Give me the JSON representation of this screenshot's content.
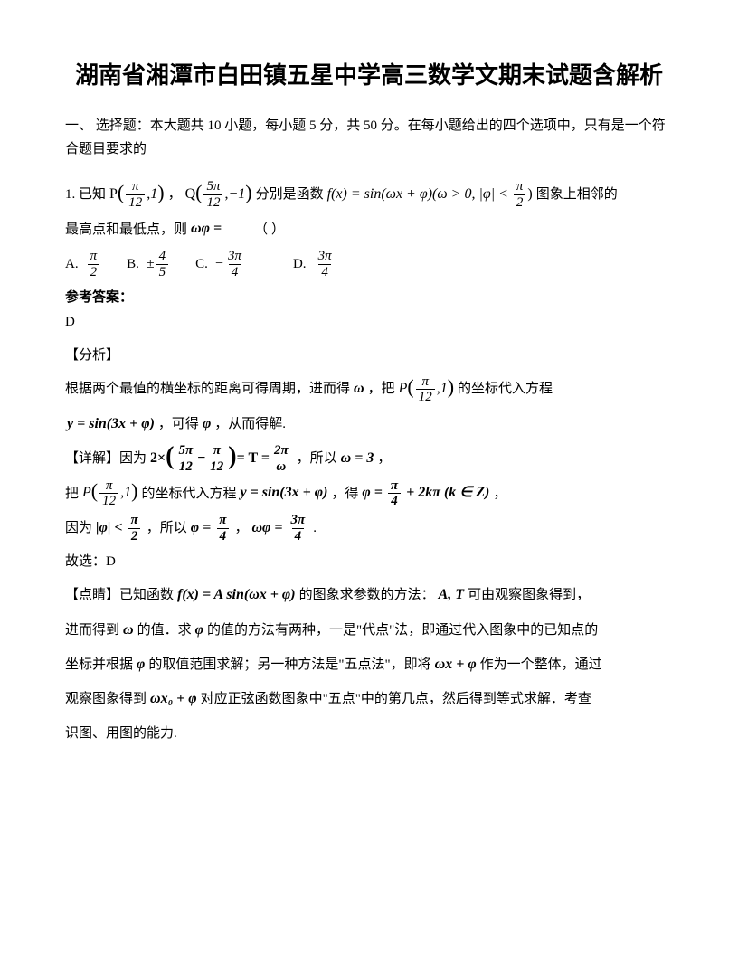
{
  "title": "湖南省湘潭市白田镇五星中学高三数学文期末试题含解析",
  "section_intro": "一、 选择题：本大题共 10 小题，每小题 5 分，共 50 分。在每小题给出的四个选项中，只有是一个符合题目要求的",
  "q1": {
    "label": "1. 已知",
    "txt_between": "，",
    "txt_after_q": "分别是函数",
    "txt_after_f": "图象上相邻的",
    "line2a": "最高点和最低点，则",
    "line2b": "（     ）",
    "P_expr": {
      "name": "P",
      "num": "π",
      "den": "12",
      "y": "1"
    },
    "Q_expr": {
      "name": "Q",
      "num": "5π",
      "den": "12",
      "y": "−1"
    },
    "f_expr": "f(x) = sin(ωx + φ)(ω > 0, |φ| < ",
    "f_frac": {
      "num": "π",
      "den": "2"
    },
    "f_close": ")",
    "wphi_eq": "ωφ =",
    "options": {
      "A": {
        "num": "π",
        "den": "2",
        "sign": ""
      },
      "B": {
        "num": "4",
        "den": "5",
        "sign": "±"
      },
      "C": {
        "num": "3π",
        "den": "4",
        "sign": "−"
      },
      "D": {
        "num": "3π",
        "den": "4",
        "sign": ""
      }
    }
  },
  "ans_label": "参考答案：",
  "ans_letter": "D",
  "analysis_label": "【分析】",
  "ana": {
    "l1a": "根据两个最值的横坐标的距离可得周期，进而得",
    "omega": "ω",
    "l1b": "，把",
    "P": {
      "num": "π",
      "den": "12",
      "y": "1"
    },
    "l1c": "的坐标代入方程",
    "l2eq": "y = sin(3x + φ)",
    "l2a": "，可得",
    "phi": "φ",
    "l2b": "，从而得解."
  },
  "detail_label": "【详解】因为",
  "det": {
    "expr1_pre": "2×",
    "expr1_a": {
      "num": "5π",
      "den": "12"
    },
    "expr1_minus": "−",
    "expr1_b": {
      "num": "π",
      "den": "12"
    },
    "expr1_eqT": "= T =",
    "expr1_T": {
      "num": "2π",
      "den": "ω"
    },
    "txt1": "，所以",
    "omega3": "ω = 3",
    "comma1": "，",
    "l3a": "把",
    "P": {
      "num": "π",
      "den": "12",
      "y": "1"
    },
    "l3b": "的坐标代入方程",
    "eq3": "y = sin(3x + φ)",
    "l3c": "，得",
    "phi_sol_a": "φ = ",
    "phi_sol_frac": {
      "num": "π",
      "den": "4"
    },
    "phi_sol_b": " + 2kπ (k ∈ Z)",
    "comma2": "，",
    "l4a": "因为",
    "abs_phi": "|φ| < ",
    "abs_phi_frac": {
      "num": "π",
      "den": "2"
    },
    "l4b": "，所以",
    "phi_val": "φ = ",
    "phi_val_frac": {
      "num": "π",
      "den": "4"
    },
    "l4c": "，",
    "wphi": "ωφ = ",
    "wphi_frac": {
      "num": "3π",
      "den": "4"
    },
    "period": ".",
    "pick": "故选：D"
  },
  "tip_label": "【点睛】已知函数",
  "tip": {
    "fx": "f(x) = A sin(ωx + φ)",
    "t1": "的图象求参数的方法：",
    "AT": "A, T",
    "t2": "可由观察图象得到，",
    "t3": "进而得到",
    "omega": "ω",
    "t4": "的值．求",
    "phi": "φ",
    "t5": "的值的方法有两种，一是\"代点\"法，即通过代入图象中的已知点的",
    "t6": "坐标并根据",
    "t7": "的取值范围求解；另一种方法是\"五点法\"，即将",
    "wxphi": "ωx + φ",
    "t8": "作为一个整体，通过",
    "t9": "观察图象得到",
    "wx0phi": "ωx₀ + φ",
    "t10": "对应正弦函数图象中\"五点\"中的第几点，然后得到等式求解．考查",
    "t11": "识图、用图的能力."
  }
}
